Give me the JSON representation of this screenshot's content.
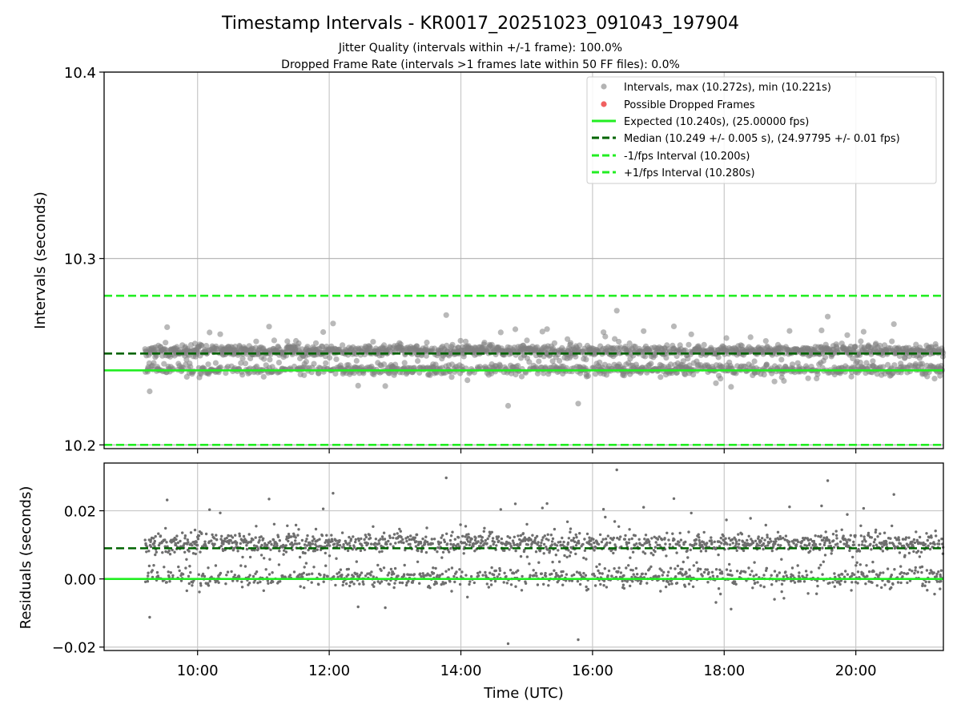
{
  "title": "Timestamp Intervals - KR0017_20251023_091043_197904",
  "subtitle1": "Jitter Quality (intervals within +/-1 frame): 100.0%",
  "subtitle2": "Dropped Frame Rate (intervals >1 frames late within 50 FF files): 0.0%",
  "colors": {
    "points": "#808080",
    "dropped": "#f06060",
    "expected": "#22ee22",
    "median": "#006400",
    "bounds": "#22ee22",
    "grid": "#c8c8c8",
    "axis": "#000000"
  },
  "chart_data": [
    {
      "type": "scatter",
      "panel": "intervals",
      "ylabel": "Intervals (seconds)",
      "xlabel": "",
      "xlim_hours": [
        8.58,
        21.33
      ],
      "ylim": [
        10.198,
        10.4
      ],
      "yticks": [
        10.2,
        10.3,
        10.4
      ],
      "ytick_labels": [
        "10.2",
        "10.3",
        "10.4"
      ],
      "x_range_hours": [
        9.2,
        21.33
      ],
      "n_points": 2200,
      "interval_max": 10.272,
      "interval_min": 10.221,
      "median": 10.249,
      "expected": 10.24,
      "lower_bound": 10.2,
      "upper_bound": 10.28,
      "legend_position": "top-right",
      "legend": [
        {
          "label": "Intervals, max (10.272s), min (10.221s)",
          "kind": "dot-grey"
        },
        {
          "label": "Possible Dropped Frames",
          "kind": "dot-red"
        },
        {
          "label": "Expected (10.240s), (25.00000 fps)",
          "kind": "line-expected"
        },
        {
          "label": "Median (10.249 +/- 0.005 s), (24.97795 +/- 0.01 fps)",
          "kind": "line-median"
        },
        {
          "label": "-1/fps Interval (10.200s)",
          "kind": "line-bound"
        },
        {
          "label": "+1/fps Interval (10.280s)",
          "kind": "line-bound"
        }
      ]
    },
    {
      "type": "scatter",
      "panel": "residuals",
      "ylabel": "Residuals (seconds)",
      "xlabel": "Time (UTC)",
      "xlim_hours": [
        8.58,
        21.33
      ],
      "ylim": [
        -0.021,
        0.034
      ],
      "yticks": [
        -0.02,
        0.0,
        0.02
      ],
      "ytick_labels": [
        "−0.02",
        "0.00",
        "0.02"
      ],
      "xticks_hours": [
        10,
        12,
        14,
        16,
        18,
        20
      ],
      "xtick_labels": [
        "10:00",
        "12:00",
        "14:00",
        "16:00",
        "18:00",
        "20:00"
      ],
      "median_residual": 0.009,
      "expected_residual": 0.0
    }
  ]
}
